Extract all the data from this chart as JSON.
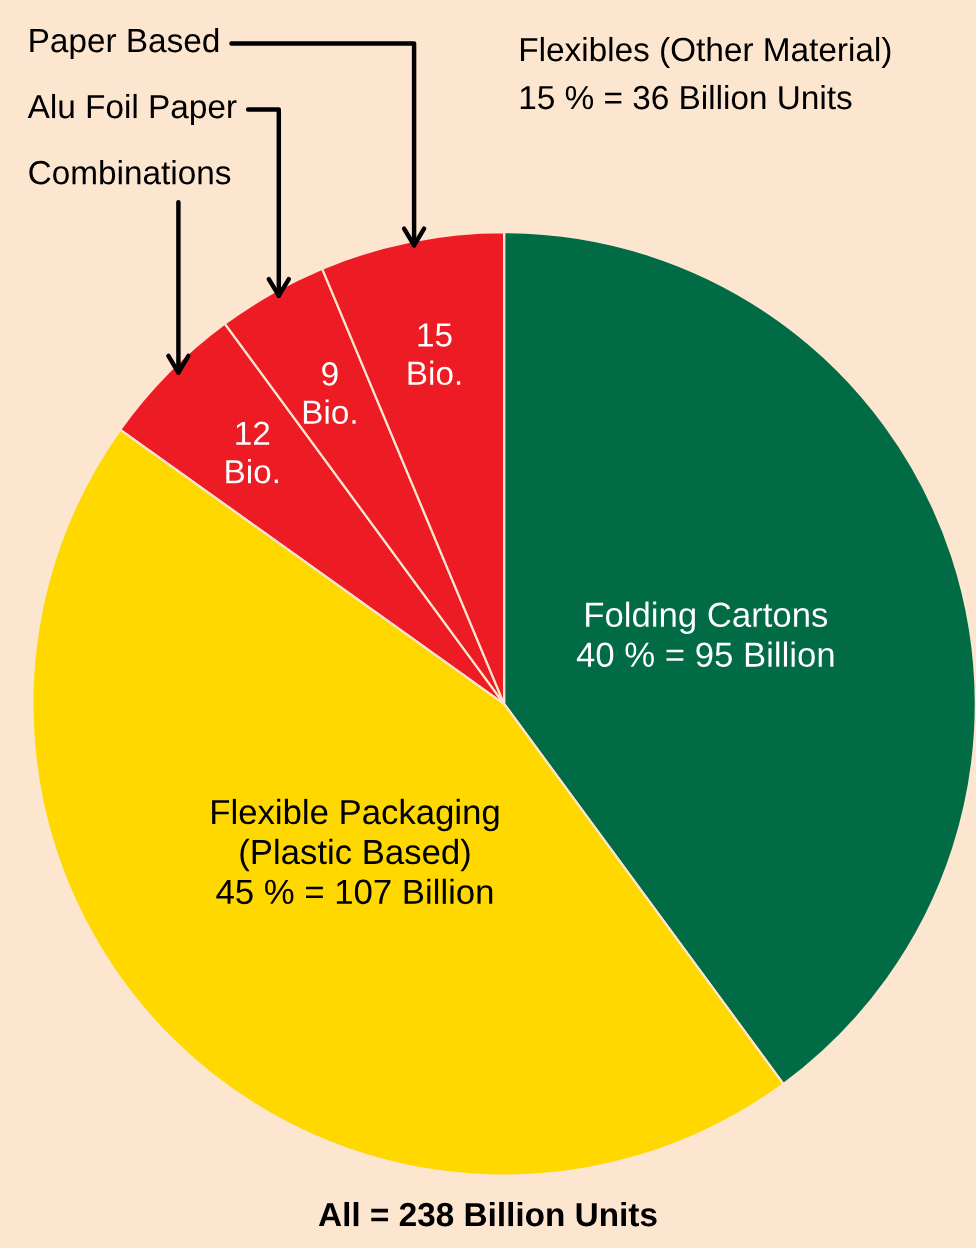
{
  "chart_data": {
    "type": "pie",
    "title": "All = 238 Billion Units",
    "categories": [
      "Folding Cartons",
      "Flexible Packaging\n(Plastic Based)",
      "Combinations",
      "Alu Foil Paper",
      "Paper Based"
    ],
    "values": [
      95,
      107,
      12,
      9,
      15
    ],
    "colors": [
      "#006b45",
      "#ffd800",
      "#ed1c24",
      "#ed1c24",
      "#ed1c24"
    ],
    "value_labels": [
      "40 % = 95 Billion",
      "45 % = 107 Billion",
      "12\nBio.",
      "9\nBio.",
      "15\nBio."
    ],
    "annotations": [
      "Flexibles (Other Material)\n15 % = 36 Billion Units"
    ],
    "legend": false
  }
}
